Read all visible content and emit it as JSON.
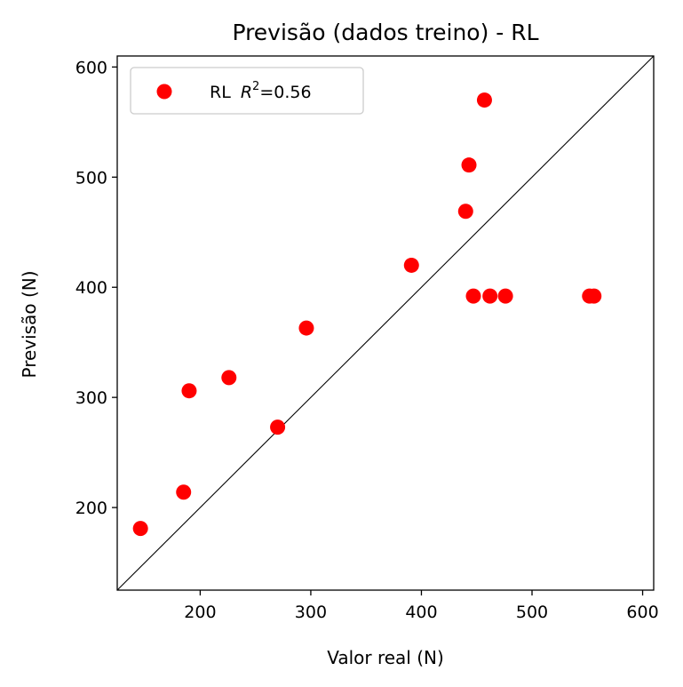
{
  "chart_data": {
    "type": "scatter",
    "title": "Previsão (dados treino) - RL",
    "xlabel": "Valor real (N)",
    "ylabel": "Previsão (N)",
    "xlim": [
      125,
      610
    ],
    "ylim": [
      125,
      610
    ],
    "xticks": [
      200,
      300,
      400,
      500,
      600
    ],
    "yticks": [
      200,
      300,
      400,
      500,
      600
    ],
    "grid": false,
    "legend_position": "upper left",
    "identity_line": true,
    "series": [
      {
        "name": "RL",
        "legend_r2_value": "0.56",
        "color": "#ff0000",
        "points": [
          {
            "x": 146,
            "y": 181
          },
          {
            "x": 185,
            "y": 214
          },
          {
            "x": 190,
            "y": 306
          },
          {
            "x": 226,
            "y": 318
          },
          {
            "x": 270,
            "y": 273
          },
          {
            "x": 296,
            "y": 363
          },
          {
            "x": 391,
            "y": 420
          },
          {
            "x": 440,
            "y": 469
          },
          {
            "x": 443,
            "y": 511
          },
          {
            "x": 447,
            "y": 392
          },
          {
            "x": 457,
            "y": 570
          },
          {
            "x": 462,
            "y": 392
          },
          {
            "x": 476,
            "y": 392
          },
          {
            "x": 552,
            "y": 392
          },
          {
            "x": 556,
            "y": 392
          }
        ]
      }
    ]
  }
}
